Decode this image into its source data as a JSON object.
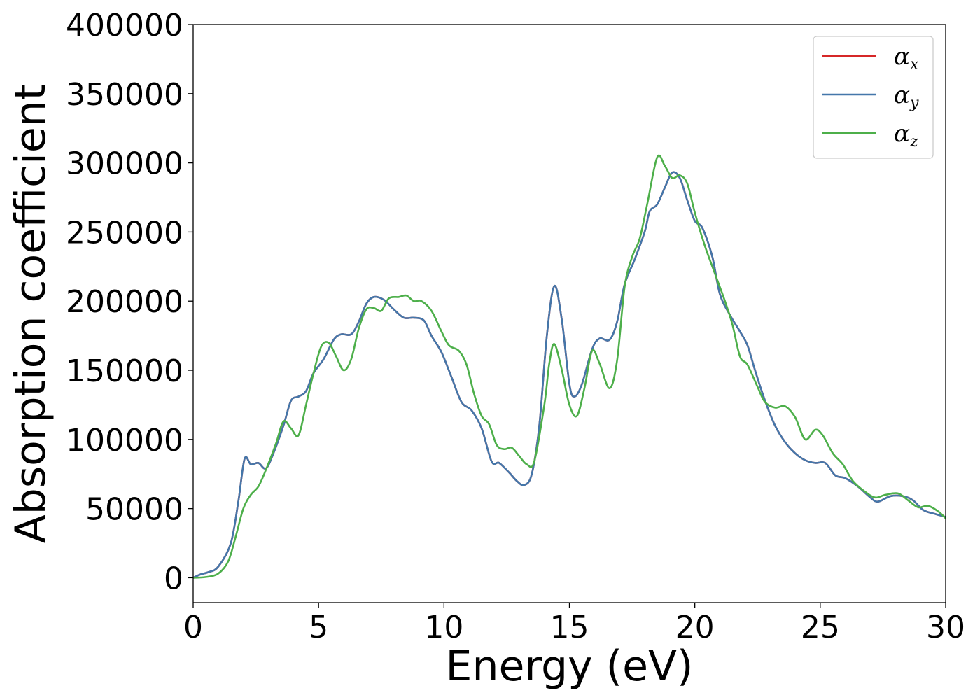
{
  "chart_data": {
    "type": "line",
    "xlabel": "Energy (eV)",
    "ylabel": "Absorption coefficient",
    "xlim": [
      0,
      30
    ],
    "ylim": [
      -18000,
      400000
    ],
    "xticks": [
      "0",
      "5",
      "10",
      "15",
      "20",
      "25",
      "30"
    ],
    "yticks": [
      "0",
      "50000",
      "100000",
      "150000",
      "200000",
      "250000",
      "300000",
      "350000",
      "400000"
    ],
    "grid": false,
    "legend": "top-right",
    "series": [
      {
        "name": "α",
        "sub": "x",
        "color": "#d62728",
        "points": [
          [
            0,
            0
          ],
          [
            0.3,
            2500
          ],
          [
            0.6,
            4000
          ],
          [
            1.0,
            8000
          ],
          [
            1.5,
            25000
          ],
          [
            1.8,
            55000
          ],
          [
            2.05,
            86000
          ],
          [
            2.3,
            82000
          ],
          [
            2.6,
            83000
          ],
          [
            2.9,
            79000
          ],
          [
            3.2,
            90000
          ],
          [
            3.6,
            110000
          ],
          [
            3.9,
            128000
          ],
          [
            4.2,
            131000
          ],
          [
            4.5,
            135000
          ],
          [
            4.8,
            148000
          ],
          [
            5.2,
            158000
          ],
          [
            5.6,
            172000
          ],
          [
            5.9,
            176000
          ],
          [
            6.3,
            176000
          ],
          [
            6.6,
            185000
          ],
          [
            6.9,
            198000
          ],
          [
            7.2,
            203000
          ],
          [
            7.6,
            201000
          ],
          [
            8.0,
            194000
          ],
          [
            8.4,
            188000
          ],
          [
            8.8,
            188000
          ],
          [
            9.2,
            186000
          ],
          [
            9.5,
            175000
          ],
          [
            9.9,
            163000
          ],
          [
            10.3,
            145000
          ],
          [
            10.7,
            127000
          ],
          [
            11.1,
            121000
          ],
          [
            11.5,
            108000
          ],
          [
            11.9,
            84000
          ],
          [
            12.2,
            83000
          ],
          [
            12.6,
            76000
          ],
          [
            12.9,
            70000
          ],
          [
            13.2,
            67000
          ],
          [
            13.5,
            75000
          ],
          [
            13.8,
            110000
          ],
          [
            14.1,
            175000
          ],
          [
            14.4,
            211000
          ],
          [
            14.7,
            186000
          ],
          [
            15.0,
            140000
          ],
          [
            15.2,
            131000
          ],
          [
            15.5,
            140000
          ],
          [
            15.9,
            165000
          ],
          [
            16.2,
            173000
          ],
          [
            16.6,
            172000
          ],
          [
            16.9,
            185000
          ],
          [
            17.2,
            212000
          ],
          [
            17.6,
            230000
          ],
          [
            18.0,
            250000
          ],
          [
            18.2,
            265000
          ],
          [
            18.5,
            270000
          ],
          [
            18.8,
            282000
          ],
          [
            19.1,
            293000
          ],
          [
            19.4,
            289000
          ],
          [
            19.7,
            273000
          ],
          [
            20.0,
            258000
          ],
          [
            20.3,
            253000
          ],
          [
            20.7,
            232000
          ],
          [
            21.0,
            205000
          ],
          [
            21.4,
            190000
          ],
          [
            21.8,
            178000
          ],
          [
            22.1,
            168000
          ],
          [
            22.4,
            150000
          ],
          [
            22.8,
            128000
          ],
          [
            23.2,
            110000
          ],
          [
            23.6,
            98000
          ],
          [
            24.0,
            90000
          ],
          [
            24.4,
            85000
          ],
          [
            24.8,
            83000
          ],
          [
            25.2,
            83000
          ],
          [
            25.6,
            74000
          ],
          [
            26.0,
            72000
          ],
          [
            26.5,
            66000
          ],
          [
            27.0,
            58000
          ],
          [
            27.3,
            55000
          ],
          [
            27.8,
            59000
          ],
          [
            28.3,
            59000
          ],
          [
            28.7,
            56000
          ],
          [
            29.1,
            49000
          ],
          [
            29.6,
            46000
          ],
          [
            30.0,
            44000
          ]
        ]
      },
      {
        "name": "α",
        "sub": "y",
        "color": "#4477aa",
        "points": [
          [
            0,
            0
          ],
          [
            0.3,
            2500
          ],
          [
            0.6,
            4000
          ],
          [
            1.0,
            8000
          ],
          [
            1.5,
            25000
          ],
          [
            1.8,
            55000
          ],
          [
            2.05,
            86000
          ],
          [
            2.3,
            82000
          ],
          [
            2.6,
            83000
          ],
          [
            2.9,
            79000
          ],
          [
            3.2,
            90000
          ],
          [
            3.6,
            110000
          ],
          [
            3.9,
            128000
          ],
          [
            4.2,
            131000
          ],
          [
            4.5,
            135000
          ],
          [
            4.8,
            148000
          ],
          [
            5.2,
            158000
          ],
          [
            5.6,
            172000
          ],
          [
            5.9,
            176000
          ],
          [
            6.3,
            176000
          ],
          [
            6.6,
            185000
          ],
          [
            6.9,
            198000
          ],
          [
            7.2,
            203000
          ],
          [
            7.6,
            201000
          ],
          [
            8.0,
            194000
          ],
          [
            8.4,
            188000
          ],
          [
            8.8,
            188000
          ],
          [
            9.2,
            186000
          ],
          [
            9.5,
            175000
          ],
          [
            9.9,
            163000
          ],
          [
            10.3,
            145000
          ],
          [
            10.7,
            127000
          ],
          [
            11.1,
            121000
          ],
          [
            11.5,
            108000
          ],
          [
            11.9,
            84000
          ],
          [
            12.2,
            83000
          ],
          [
            12.6,
            76000
          ],
          [
            12.9,
            70000
          ],
          [
            13.2,
            67000
          ],
          [
            13.5,
            75000
          ],
          [
            13.8,
            110000
          ],
          [
            14.1,
            175000
          ],
          [
            14.4,
            211000
          ],
          [
            14.7,
            186000
          ],
          [
            15.0,
            140000
          ],
          [
            15.2,
            131000
          ],
          [
            15.5,
            140000
          ],
          [
            15.9,
            165000
          ],
          [
            16.2,
            173000
          ],
          [
            16.6,
            172000
          ],
          [
            16.9,
            185000
          ],
          [
            17.2,
            212000
          ],
          [
            17.6,
            230000
          ],
          [
            18.0,
            250000
          ],
          [
            18.2,
            265000
          ],
          [
            18.5,
            270000
          ],
          [
            18.8,
            282000
          ],
          [
            19.1,
            293000
          ],
          [
            19.4,
            289000
          ],
          [
            19.7,
            273000
          ],
          [
            20.0,
            258000
          ],
          [
            20.3,
            253000
          ],
          [
            20.7,
            232000
          ],
          [
            21.0,
            205000
          ],
          [
            21.4,
            190000
          ],
          [
            21.8,
            178000
          ],
          [
            22.1,
            168000
          ],
          [
            22.4,
            150000
          ],
          [
            22.8,
            128000
          ],
          [
            23.2,
            110000
          ],
          [
            23.6,
            98000
          ],
          [
            24.0,
            90000
          ],
          [
            24.4,
            85000
          ],
          [
            24.8,
            83000
          ],
          [
            25.2,
            83000
          ],
          [
            25.6,
            74000
          ],
          [
            26.0,
            72000
          ],
          [
            26.5,
            66000
          ],
          [
            27.0,
            58000
          ],
          [
            27.3,
            55000
          ],
          [
            27.8,
            59000
          ],
          [
            28.3,
            59000
          ],
          [
            28.7,
            56000
          ],
          [
            29.1,
            49000
          ],
          [
            29.6,
            46000
          ],
          [
            30.0,
            44000
          ]
        ]
      },
      {
        "name": "α",
        "sub": "z",
        "color": "#4daf4a",
        "points": [
          [
            0,
            0
          ],
          [
            0.5,
            500
          ],
          [
            1.0,
            3000
          ],
          [
            1.4,
            12000
          ],
          [
            1.7,
            30000
          ],
          [
            2.0,
            50000
          ],
          [
            2.3,
            60000
          ],
          [
            2.6,
            66000
          ],
          [
            2.9,
            78000
          ],
          [
            3.3,
            97000
          ],
          [
            3.6,
            113000
          ],
          [
            3.9,
            108000
          ],
          [
            4.2,
            103000
          ],
          [
            4.5,
            125000
          ],
          [
            4.8,
            148000
          ],
          [
            5.1,
            167000
          ],
          [
            5.4,
            170000
          ],
          [
            5.7,
            160000
          ],
          [
            6.0,
            150000
          ],
          [
            6.3,
            158000
          ],
          [
            6.6,
            180000
          ],
          [
            6.9,
            194000
          ],
          [
            7.2,
            195000
          ],
          [
            7.5,
            193000
          ],
          [
            7.8,
            202000
          ],
          [
            8.2,
            203000
          ],
          [
            8.5,
            204000
          ],
          [
            8.8,
            200000
          ],
          [
            9.1,
            200000
          ],
          [
            9.5,
            193000
          ],
          [
            9.9,
            178000
          ],
          [
            10.2,
            168000
          ],
          [
            10.6,
            164000
          ],
          [
            10.9,
            154000
          ],
          [
            11.2,
            133000
          ],
          [
            11.5,
            117000
          ],
          [
            11.8,
            111000
          ],
          [
            12.1,
            96000
          ],
          [
            12.4,
            93000
          ],
          [
            12.7,
            94000
          ],
          [
            13.0,
            88000
          ],
          [
            13.3,
            82000
          ],
          [
            13.6,
            84000
          ],
          [
            14.0,
            125000
          ],
          [
            14.2,
            155000
          ],
          [
            14.4,
            169000
          ],
          [
            14.7,
            150000
          ],
          [
            15.0,
            125000
          ],
          [
            15.3,
            117000
          ],
          [
            15.6,
            137000
          ],
          [
            15.9,
            164000
          ],
          [
            16.2,
            155000
          ],
          [
            16.6,
            137000
          ],
          [
            16.9,
            157000
          ],
          [
            17.2,
            210000
          ],
          [
            17.5,
            232000
          ],
          [
            17.8,
            245000
          ],
          [
            18.1,
            270000
          ],
          [
            18.5,
            304000
          ],
          [
            18.8,
            298000
          ],
          [
            19.1,
            289000
          ],
          [
            19.4,
            291000
          ],
          [
            19.7,
            285000
          ],
          [
            20.0,
            264000
          ],
          [
            20.4,
            240000
          ],
          [
            20.8,
            220000
          ],
          [
            21.2,
            200000
          ],
          [
            21.5,
            183000
          ],
          [
            21.8,
            160000
          ],
          [
            22.1,
            154000
          ],
          [
            22.5,
            138000
          ],
          [
            22.8,
            127000
          ],
          [
            23.2,
            123000
          ],
          [
            23.6,
            124000
          ],
          [
            24.0,
            116000
          ],
          [
            24.4,
            100000
          ],
          [
            24.8,
            107000
          ],
          [
            25.1,
            103000
          ],
          [
            25.5,
            90000
          ],
          [
            25.9,
            82000
          ],
          [
            26.3,
            70000
          ],
          [
            26.8,
            62000
          ],
          [
            27.2,
            58000
          ],
          [
            27.6,
            60000
          ],
          [
            28.1,
            61000
          ],
          [
            28.5,
            56000
          ],
          [
            28.9,
            51000
          ],
          [
            29.3,
            52000
          ],
          [
            29.7,
            48000
          ],
          [
            30.0,
            43000
          ]
        ]
      }
    ]
  }
}
